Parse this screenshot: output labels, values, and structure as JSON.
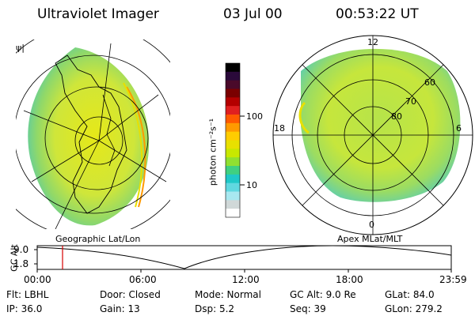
{
  "header": {
    "title": "Ultraviolet Imager",
    "date": "03 Jul 00",
    "time": "00:53:22 UT"
  },
  "left_panel": {
    "caption": "Geographic Lat/Lon",
    "corner_mark": "ψ|"
  },
  "right_panel": {
    "caption": "Apex  MLat/MLT",
    "mlt_labels": [
      "12",
      "18",
      "6",
      "0"
    ],
    "mlat_labels": [
      "60",
      "70",
      "80"
    ]
  },
  "colorbar": {
    "unit_label": "photon cm⁻²s⁻¹",
    "ticks": [
      "100",
      "10"
    ],
    "colors": [
      "#000000",
      "#2a0a3a",
      "#4a0a2a",
      "#7a0000",
      "#b40000",
      "#e02020",
      "#ff5a00",
      "#ff9a00",
      "#ffcc00",
      "#e8e000",
      "#c8e800",
      "#90e030",
      "#40d080",
      "#20c8c8",
      "#60d8e0",
      "#a8e8f0",
      "#d0d8d8",
      "#ffffff"
    ]
  },
  "altitude_plot": {
    "ylabel": "GC Alt",
    "yticks": [
      "9.0",
      "1.8"
    ],
    "xticks": [
      "00:00",
      "06:00",
      "12:00",
      "18:00",
      "23:59"
    ],
    "marker_color": "#d40000"
  },
  "info": {
    "filter": "Flt: LBHL",
    "door": "Door: Closed",
    "mode": "Mode: Normal",
    "gc_alt": "GC Alt: 9.0 Re",
    "glat": "GLat:  84.0",
    "ip": "IP: 36.0",
    "gain": "Gain: 13",
    "dsp": "Dsp:     5.2",
    "seq": "Seq: 39",
    "glon": "GLon: 279.2"
  }
}
